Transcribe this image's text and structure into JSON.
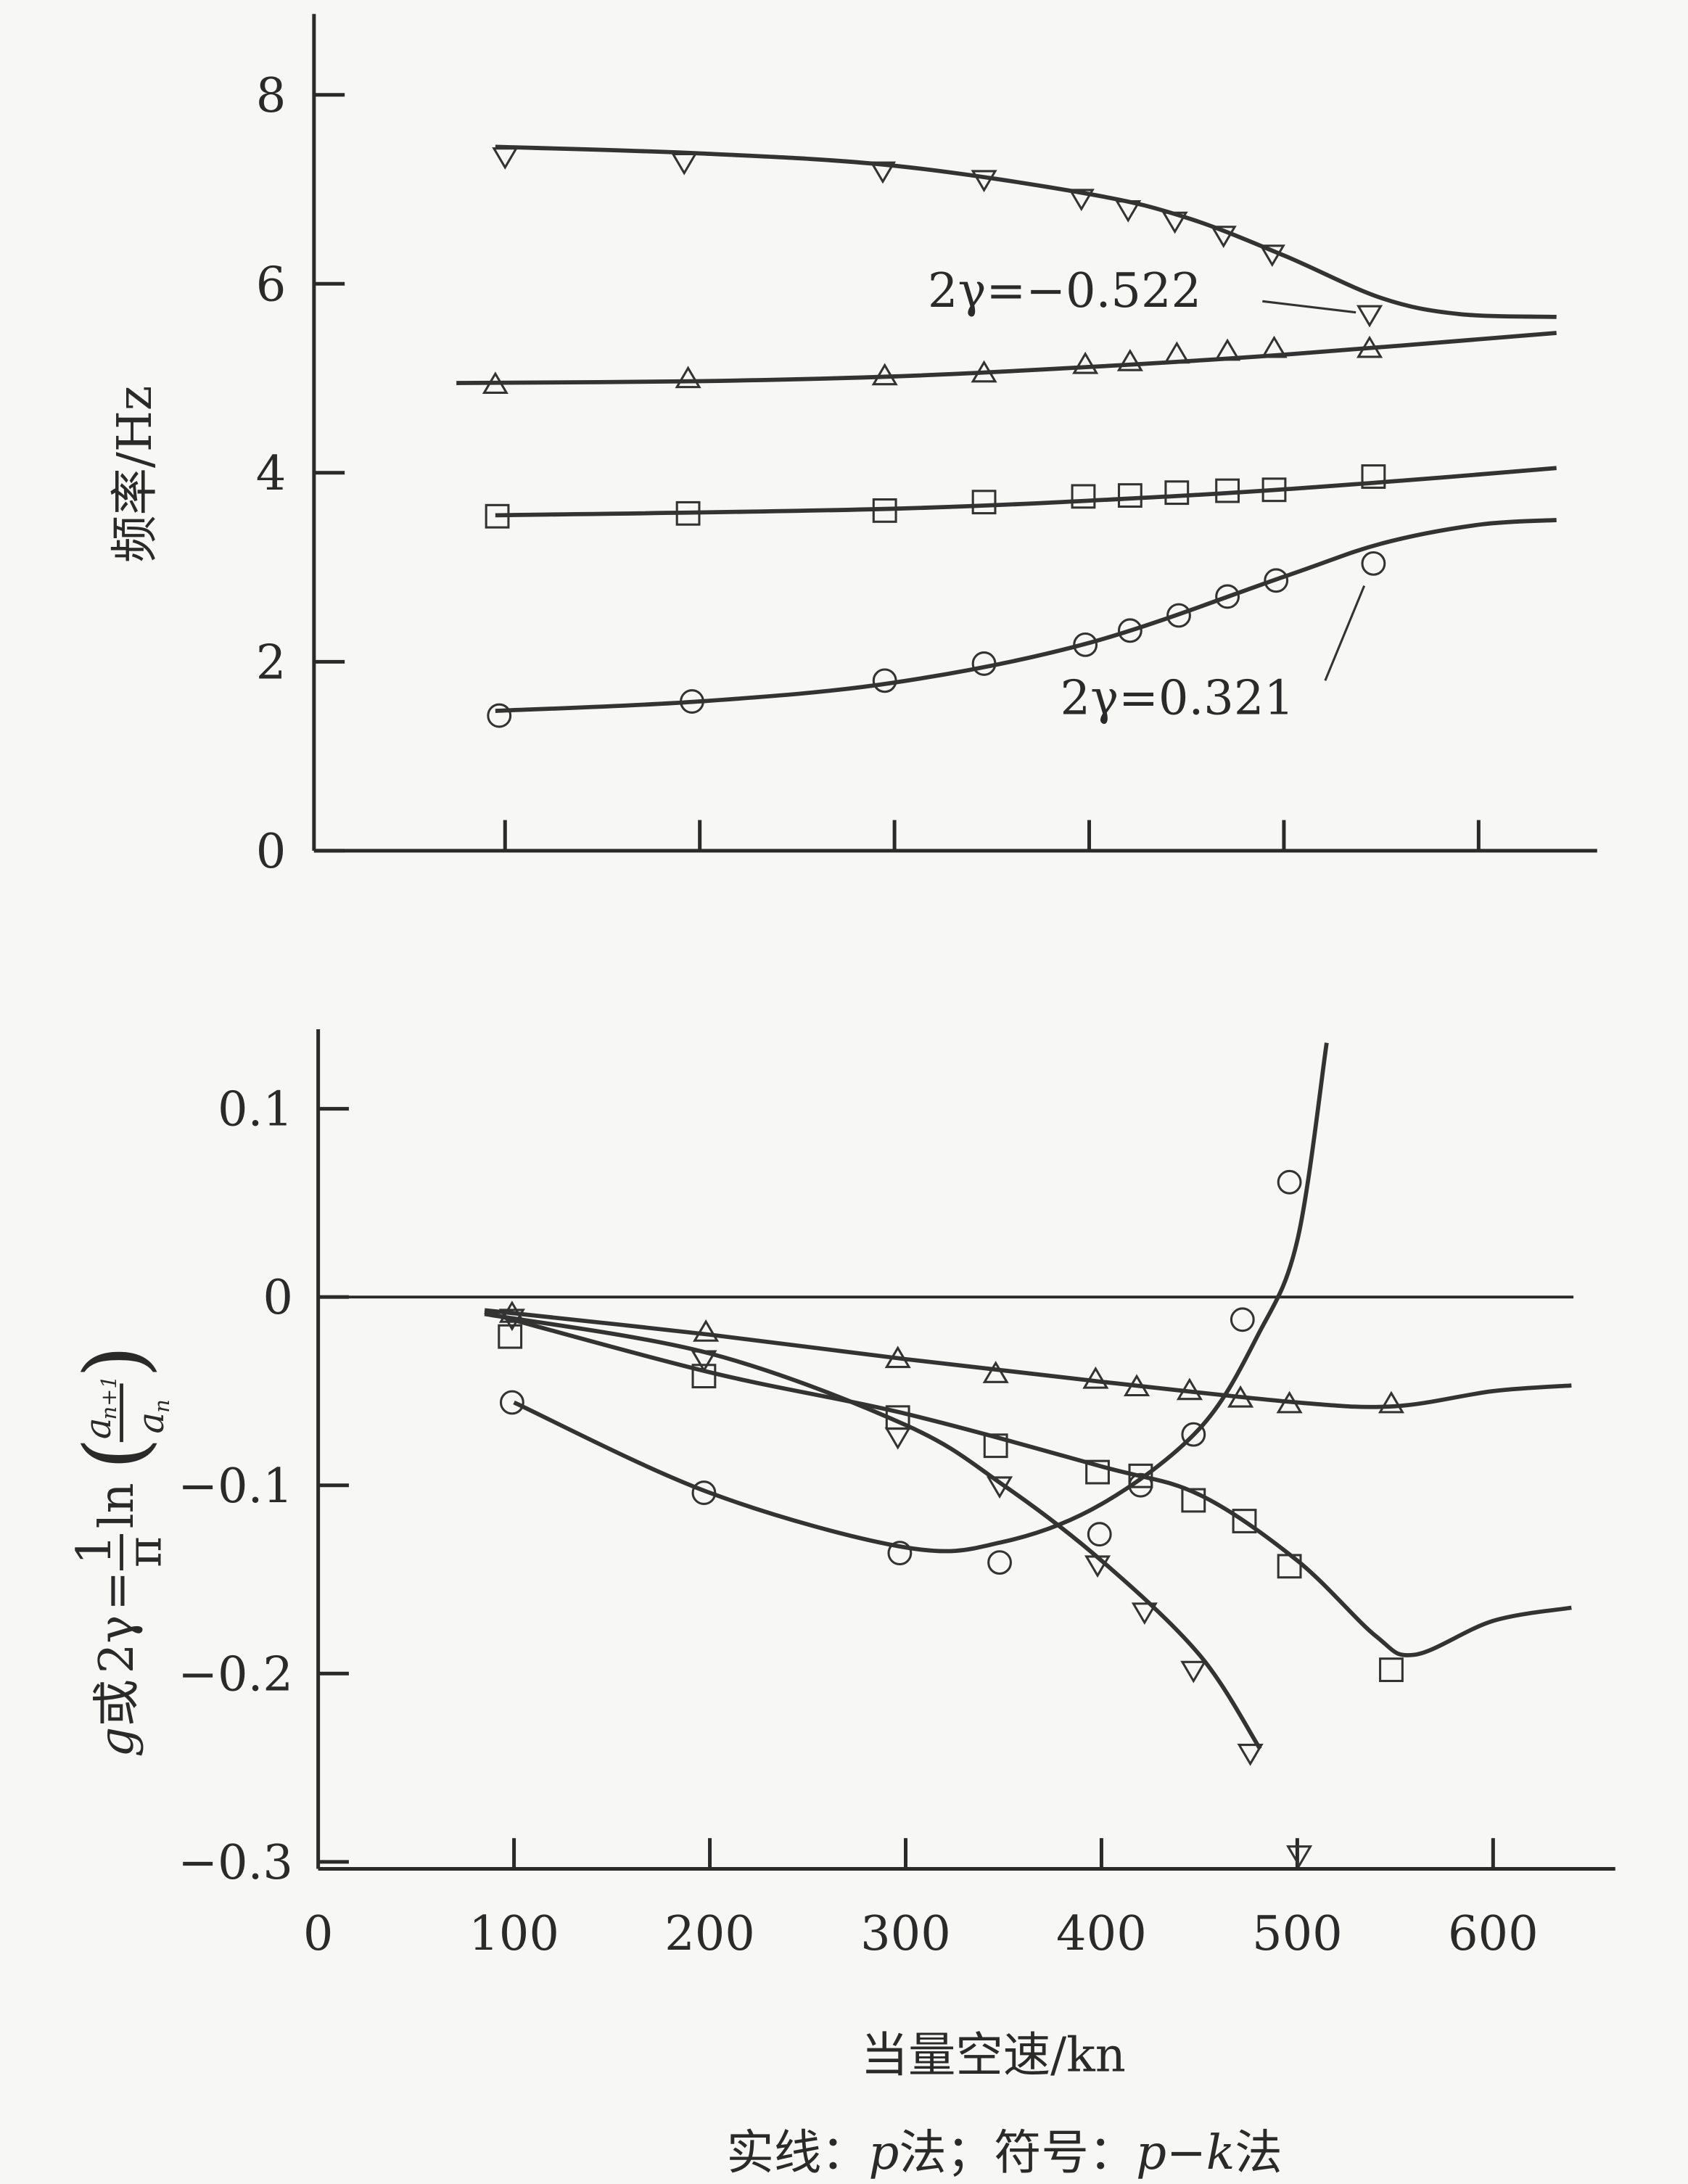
{
  "chart_data": [
    {
      "type": "line",
      "xlabel": "",
      "ylabel": "频率/Hz",
      "xlim": [
        0,
        650
      ],
      "ylim": [
        0,
        8.5
      ],
      "yticks": [
        "0",
        "2",
        "4",
        "6",
        "8"
      ],
      "xticks": [
        100,
        200,
        300,
        400,
        500,
        600
      ],
      "grid": false,
      "annotations": [
        "2γ=−0.522",
        "2γ=0.321"
      ],
      "series": [
        {
          "marker": "triangle-down",
          "points_x": [
            100,
            192,
            294,
            346,
            396,
            420,
            444,
            469,
            494,
            544
          ],
          "points_y": [
            7.35,
            7.29,
            7.2,
            7.11,
            6.91,
            6.79,
            6.67,
            6.52,
            6.32,
            5.68
          ],
          "line_x": [
            95,
            200,
            300,
            400,
            450,
            500,
            550,
            590,
            640
          ],
          "line_y": [
            7.45,
            7.38,
            7.25,
            6.95,
            6.7,
            6.3,
            5.85,
            5.68,
            5.65
          ]
        },
        {
          "marker": "triangle-up",
          "points_x": [
            95,
            194,
            295,
            346,
            398,
            421,
            445,
            471,
            495,
            544
          ],
          "points_y": [
            4.93,
            4.99,
            5.02,
            5.05,
            5.14,
            5.17,
            5.25,
            5.28,
            5.31,
            5.31
          ],
          "line_x": [
            75,
            200,
            300,
            400,
            500,
            640
          ],
          "line_y": [
            4.95,
            4.97,
            5.02,
            5.12,
            5.25,
            5.48
          ]
        },
        {
          "marker": "square",
          "points_x": [
            96,
            194,
            295,
            346,
            397,
            421,
            445,
            471,
            495,
            546
          ],
          "points_y": [
            3.54,
            3.57,
            3.6,
            3.69,
            3.75,
            3.76,
            3.79,
            3.81,
            3.82,
            3.96
          ],
          "line_x": [
            95,
            300,
            450,
            550,
            640
          ],
          "line_y": [
            3.55,
            3.62,
            3.76,
            3.9,
            4.05
          ]
        },
        {
          "marker": "circle",
          "points_x": [
            97,
            196,
            295,
            346,
            398,
            421,
            446,
            471,
            496,
            546
          ],
          "points_y": [
            1.43,
            1.58,
            1.8,
            1.98,
            2.18,
            2.33,
            2.49,
            2.69,
            2.86,
            3.04
          ],
          "line_x": [
            95,
            200,
            300,
            400,
            500,
            550,
            600,
            640
          ],
          "line_y": [
            1.48,
            1.58,
            1.78,
            2.2,
            2.9,
            3.25,
            3.45,
            3.5
          ]
        }
      ]
    },
    {
      "type": "line",
      "xlabel": "当量空速/kn",
      "ylabel": "g或2γ = (1/π) ln(a_{n+1}/a_n)",
      "ylabel_parts": {
        "g": "g",
        "or": "或",
        "gamma": "2γ",
        "eq": "=",
        "one": "1",
        "pi": "π",
        "ln": "ln",
        "num": "a",
        "num_sub": "n+1",
        "den": "a",
        "den_sub": "n"
      },
      "xlim": [
        0,
        650
      ],
      "ylim": [
        -0.3,
        0.14
      ],
      "yticks": [
        "0.1",
        "0",
        "−0.1",
        "−0.2",
        "−0.3"
      ],
      "xticks": [
        "0",
        "100",
        "200",
        "300",
        "400",
        "500",
        "600"
      ],
      "grid": false,
      "series": [
        {
          "marker": "triangle-up",
          "points_x": [
            99,
            198,
            296,
            346,
            397,
            418,
            445,
            471,
            496,
            548
          ],
          "points_y": [
            -0.009,
            -0.019,
            -0.033,
            -0.041,
            -0.044,
            -0.048,
            -0.05,
            -0.054,
            -0.057,
            -0.057
          ],
          "line_x": [
            85,
            200,
            300,
            400,
            500,
            550,
            600,
            640
          ],
          "line_y": [
            -0.007,
            -0.02,
            -0.033,
            -0.045,
            -0.056,
            -0.058,
            -0.05,
            -0.047
          ]
        },
        {
          "marker": "square",
          "points_x": [
            98,
            197,
            296,
            346,
            398,
            420,
            447,
            473,
            496,
            548
          ],
          "points_y": [
            -0.021,
            -0.042,
            -0.064,
            -0.079,
            -0.093,
            -0.095,
            -0.108,
            -0.119,
            -0.143,
            -0.198
          ],
          "line_x": [
            85,
            200,
            300,
            400,
            450,
            500,
            540,
            560,
            600,
            640
          ],
          "line_y": [
            -0.008,
            -0.04,
            -0.062,
            -0.09,
            -0.105,
            -0.14,
            -0.18,
            -0.19,
            -0.172,
            -0.165
          ]
        },
        {
          "marker": "triangle-down",
          "points_x": [
            99,
            197,
            296,
            348,
            398,
            422,
            447,
            476,
            501
          ],
          "points_y": [
            -0.011,
            -0.033,
            -0.074,
            -0.1,
            -0.142,
            -0.167,
            -0.198,
            -0.242,
            -0.296
          ],
          "line_x": [
            85,
            200,
            300,
            350,
            400,
            450,
            481
          ],
          "line_y": [
            -0.009,
            -0.03,
            -0.068,
            -0.1,
            -0.14,
            -0.19,
            -0.24
          ]
        },
        {
          "marker": "circle",
          "points_x": [
            99,
            197,
            297,
            348,
            399,
            420,
            447,
            472,
            496
          ],
          "points_y": [
            -0.056,
            -0.104,
            -0.136,
            -0.141,
            -0.126,
            -0.1,
            -0.073,
            -0.012,
            0.061
          ],
          "line_x": [
            100,
            200,
            300,
            350,
            400,
            450,
            480,
            500,
            515
          ],
          "line_y": [
            -0.056,
            -0.104,
            -0.133,
            -0.13,
            -0.11,
            -0.07,
            -0.02,
            0.03,
            0.135
          ]
        }
      ]
    }
  ],
  "caption": {
    "a": "实线：",
    "b": "p",
    "c": "法；符号：",
    "d": "p−k",
    "e": "法"
  },
  "colors": {
    "ink": "#2a2a2a",
    "paper": "#f7f7f5"
  }
}
